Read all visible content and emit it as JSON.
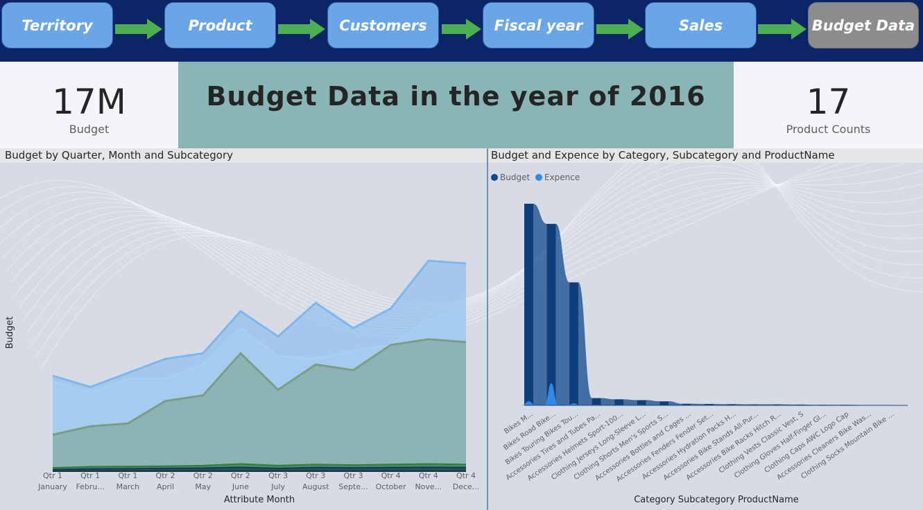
{
  "nav": {
    "items": [
      {
        "label": "Territory"
      },
      {
        "label": "Product"
      },
      {
        "label": "Customers"
      },
      {
        "label": "Fiscal year"
      },
      {
        "label": "Sales"
      },
      {
        "label": "Budget Data"
      }
    ]
  },
  "kpis": {
    "budget": {
      "value": "17M",
      "label": "Budget"
    },
    "product_counts": {
      "value": "17",
      "label": "Product Counts"
    }
  },
  "title": "Budget Data in the year of 2016",
  "colors": {
    "accent": "#0b2566",
    "nav_button": "#6aa6e6",
    "nav_active": "#8c8c8c",
    "arrow": "#4caf50",
    "title_box": "#8ab5b6"
  },
  "chart_data": [
    {
      "type": "area",
      "title": "Budget by Quarter, Month and Subcategory",
      "xlabel": "Attribute Month",
      "ylabel": "Budget",
      "categories": [
        {
          "quarter": "Qtr 1",
          "month": "January"
        },
        {
          "quarter": "Qtr 1",
          "month": "Febru..."
        },
        {
          "quarter": "Qtr 1",
          "month": "March"
        },
        {
          "quarter": "Qtr 2",
          "month": "April"
        },
        {
          "quarter": "Qtr 2",
          "month": "May"
        },
        {
          "quarter": "Qtr 2",
          "month": "June"
        },
        {
          "quarter": "Qtr 3",
          "month": "July"
        },
        {
          "quarter": "Qtr 3",
          "month": "August"
        },
        {
          "quarter": "Qtr 3",
          "month": "Septe..."
        },
        {
          "quarter": "Qtr 4",
          "month": "October"
        },
        {
          "quarter": "Qtr 4",
          "month": "Nove..."
        },
        {
          "quarter": "Qtr 4",
          "month": "Dece..."
        }
      ],
      "ylim": [
        0,
        100
      ],
      "series": [
        {
          "values": [
            34,
            30,
            35,
            40,
            42,
            57,
            48,
            60,
            51,
            58,
            75,
            74
          ],
          "color": "#7cb7ef"
        },
        {
          "values": [
            32,
            28,
            33,
            33,
            38,
            51,
            41,
            40,
            43,
            45,
            54,
            58
          ],
          "color": "#a6d0f2"
        },
        {
          "values": [
            13,
            16,
            17,
            25,
            27,
            42,
            29,
            38,
            36,
            45,
            47,
            46
          ],
          "color": "#7a9e84"
        },
        {
          "values": [
            1.2,
            1.6,
            1.7,
            1.8,
            2.0,
            2.6,
            2.0,
            2.4,
            2.2,
            2.4,
            2.6,
            2.4
          ],
          "color": "#2f7d3a"
        },
        {
          "values": [
            0.6,
            0.8,
            0.9,
            1.0,
            1.1,
            1.4,
            1.0,
            1.3,
            1.2,
            1.3,
            1.4,
            1.3
          ],
          "color": "#0f3d5c"
        }
      ],
      "grid": false
    },
    {
      "type": "bar",
      "title": "Budget and Expence by Category, Subcategory and ProductName",
      "xlabel": "Category Subcategory ProductName",
      "legend": "top-left",
      "categories": [
        "Bikes M...",
        "Bikes Road Bike...",
        "Bikes Touring Bikes Tou...",
        "Accessories Tires and Tubes Pa...",
        "Accessories Helmets Sport-100...",
        "Clothing Jerseys Long-Sleeve L...",
        "Clothing Shorts Men's Sports S...",
        "Accessories Bottles and Cages ...",
        "Accessories Fenders Fender Set...",
        "Accessories Hydration Packs H...",
        "Accessories Bike Stands All-Pur...",
        "Accessories Bike Racks Hitch R...",
        "Clothing Vests Classic Vest, S",
        "Clothing Gloves Half-Finger Gl...",
        "Clothing Caps AWC Logo Cap",
        "Accessories Cleaners Bike Was...",
        "Clothing Socks Mountain Bike ..."
      ],
      "series": [
        {
          "name": "Budget",
          "color": "#124a8c",
          "values": [
            100,
            90,
            61,
            3.6,
            3.0,
            2.6,
            2.0,
            0.8,
            0.7,
            0.6,
            0.5,
            0.5,
            0.4,
            0.3,
            0.3,
            0.2,
            0.2
          ]
        },
        {
          "name": "Expence",
          "color": "#2e8ae6",
          "values": [
            2.0,
            11.0,
            1.0,
            0.3,
            0.2,
            0.2,
            0.1,
            0.1,
            0.1,
            0.1,
            0.1,
            0.1,
            0.0,
            0.0,
            0.0,
            0.0,
            0.0
          ]
        }
      ],
      "ylim": [
        0,
        100
      ]
    }
  ]
}
